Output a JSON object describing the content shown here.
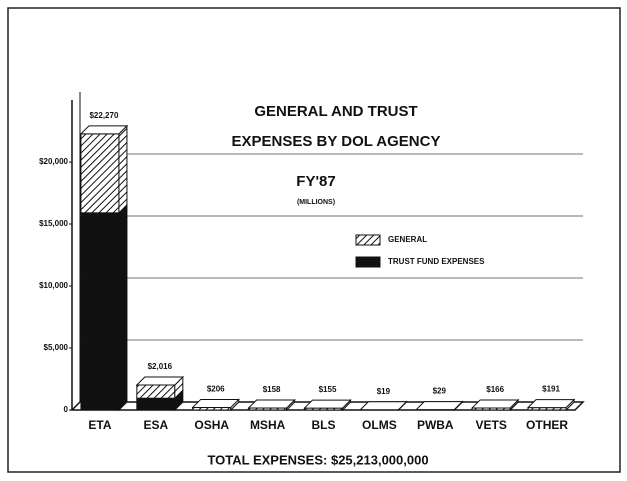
{
  "chart_data": {
    "type": "stacked-bar-3d",
    "title": [
      "GENERAL AND TRUST",
      "EXPENSES BY DOL AGENCY"
    ],
    "subtitle": "FY'87",
    "unit_note": "(MILLIONS)",
    "footer": "TOTAL EXPENSES: $25,213,000,000",
    "categories": [
      "ETA",
      "ESA",
      "OSHA",
      "MSHA",
      "BLS",
      "OLMS",
      "PWBA",
      "VETS",
      "OTHER"
    ],
    "series": [
      {
        "name": "TRUST FUND EXPENSES",
        "color": "#111111",
        "values": [
          15900,
          950,
          0,
          0,
          0,
          0,
          0,
          0,
          0
        ]
      },
      {
        "name": "GENERAL",
        "color": "#111111",
        "pattern": "hatch",
        "values": [
          6370,
          1066,
          206,
          158,
          155,
          19,
          29,
          166,
          191
        ]
      }
    ],
    "totals": [
      22270,
      2016,
      206,
      158,
      155,
      19,
      29,
      166,
      191
    ],
    "totals_labels": [
      "$22,270",
      "$2,016",
      "$206",
      "$158",
      "$155",
      "$19",
      "$29",
      "$166",
      "$191"
    ],
    "ylim": [
      0,
      25000
    ],
    "yticks": [
      0,
      {
        "value": 5000,
        "label": "$5,000"
      },
      {
        "value": 10000,
        "label": "$10,000"
      },
      {
        "value": 15000,
        "label": "$15,000"
      },
      {
        "value": 20000,
        "label": "$20,000"
      }
    ],
    "grid": true
  }
}
